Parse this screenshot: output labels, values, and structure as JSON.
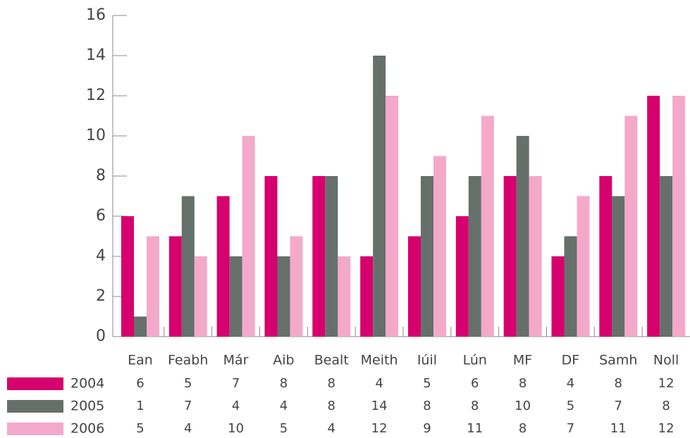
{
  "chart_data": {
    "type": "bar",
    "categories": [
      "Ean",
      "Feabh",
      "Már",
      "Aib",
      "Bealt",
      "Meith",
      "Iúil",
      "Lún",
      "MF",
      "DF",
      "Samh",
      "Noll"
    ],
    "series": [
      {
        "name": "2004",
        "color": "#d6006e",
        "values": [
          6,
          5,
          7,
          8,
          8,
          4,
          5,
          6,
          8,
          4,
          8,
          12
        ]
      },
      {
        "name": "2005",
        "color": "#66706a",
        "values": [
          1,
          7,
          4,
          4,
          8,
          14,
          8,
          8,
          10,
          5,
          7,
          8
        ]
      },
      {
        "name": "2006",
        "color": "#f4a9cb",
        "values": [
          5,
          4,
          10,
          5,
          4,
          12,
          9,
          11,
          8,
          7,
          11,
          12
        ]
      }
    ],
    "ylim": [
      0,
      16
    ],
    "yticks": [
      0,
      2,
      4,
      6,
      8,
      10,
      12,
      14,
      16
    ],
    "grid": false
  }
}
